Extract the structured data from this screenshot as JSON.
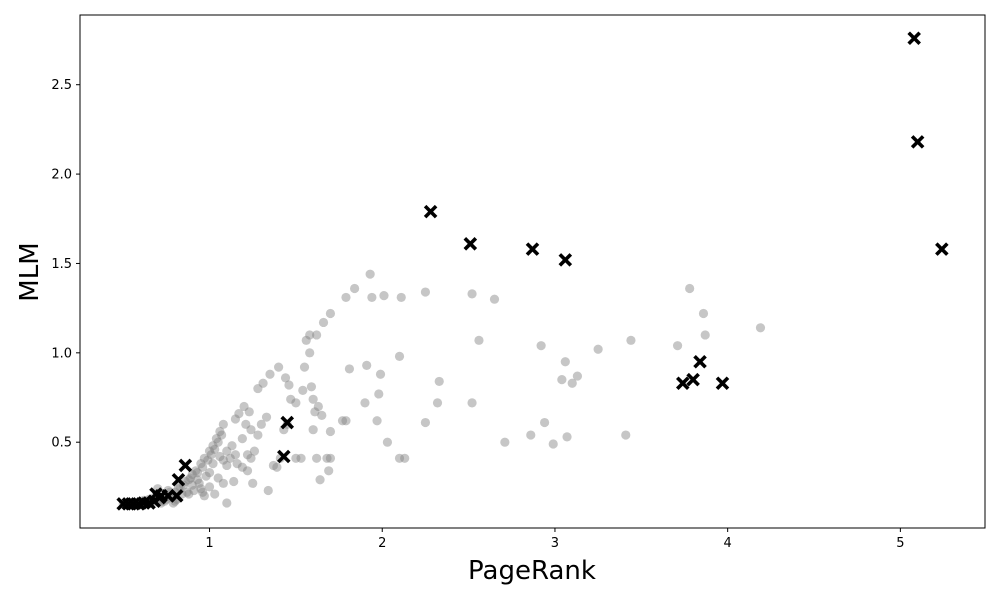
{
  "chart_data": {
    "type": "scatter",
    "xlabel": "PageRank",
    "ylabel": "MLM",
    "xlim": [
      0.25,
      5.49
    ],
    "ylim": [
      0.02,
      2.89
    ],
    "xticks": [
      1,
      2,
      3,
      4,
      5
    ],
    "yticks": [
      0.5,
      1.0,
      1.5,
      2.0,
      2.5
    ],
    "xtick_labels": [
      "1",
      "2",
      "3",
      "4",
      "5"
    ],
    "ytick_labels": [
      "0.5",
      "1.0",
      "1.5",
      "2.0",
      "2.5"
    ],
    "grid": false,
    "legend": "none",
    "series": [
      {
        "marker": "circle",
        "color": "#808080",
        "opacity": 0.45,
        "points": [
          [
            0.5,
            0.155
          ],
          [
            0.52,
            0.155
          ],
          [
            0.55,
            0.155
          ],
          [
            0.58,
            0.155
          ],
          [
            0.6,
            0.16
          ],
          [
            0.63,
            0.16
          ],
          [
            0.66,
            0.16
          ],
          [
            0.7,
            0.165
          ],
          [
            0.72,
            0.17
          ],
          [
            0.75,
            0.18
          ],
          [
            0.78,
            0.2
          ],
          [
            0.8,
            0.22
          ],
          [
            0.82,
            0.24
          ],
          [
            0.85,
            0.26
          ],
          [
            0.88,
            0.29
          ],
          [
            0.9,
            0.32
          ],
          [
            0.92,
            0.34
          ],
          [
            0.95,
            0.38
          ],
          [
            0.97,
            0.41
          ],
          [
            1.0,
            0.45
          ],
          [
            1.02,
            0.48
          ],
          [
            1.04,
            0.52
          ],
          [
            1.06,
            0.56
          ],
          [
            1.08,
            0.6
          ],
          [
            0.62,
            0.175
          ],
          [
            0.65,
            0.18
          ],
          [
            0.68,
            0.19
          ],
          [
            0.74,
            0.2
          ],
          [
            0.77,
            0.22
          ],
          [
            0.83,
            0.25
          ],
          [
            0.86,
            0.28
          ],
          [
            0.89,
            0.3
          ],
          [
            0.93,
            0.33
          ],
          [
            0.96,
            0.36
          ],
          [
            0.99,
            0.4
          ],
          [
            1.01,
            0.43
          ],
          [
            1.03,
            0.46
          ],
          [
            1.05,
            0.5
          ],
          [
            1.07,
            0.54
          ],
          [
            0.7,
            0.24
          ],
          [
            0.76,
            0.23
          ],
          [
            0.78,
            0.19
          ],
          [
            0.8,
            0.17
          ],
          [
            0.84,
            0.21
          ],
          [
            0.87,
            0.22
          ],
          [
            0.9,
            0.26
          ],
          [
            0.93,
            0.29
          ],
          [
            0.95,
            0.24
          ],
          [
            0.97,
            0.2
          ],
          [
            1.0,
            0.25
          ],
          [
            1.03,
            0.21
          ],
          [
            1.05,
            0.3
          ],
          [
            1.08,
            0.27
          ],
          [
            1.1,
            0.16
          ],
          [
            1.0,
            0.33
          ],
          [
            0.98,
            0.31
          ],
          [
            1.02,
            0.38
          ],
          [
            1.06,
            0.42
          ],
          [
            1.08,
            0.4
          ],
          [
            1.1,
            0.45
          ],
          [
            1.13,
            0.48
          ],
          [
            1.12,
            0.41
          ],
          [
            1.15,
            0.43
          ],
          [
            1.15,
            0.63
          ],
          [
            1.17,
            0.66
          ],
          [
            1.2,
            0.7
          ],
          [
            1.23,
            0.67
          ],
          [
            1.21,
            0.6
          ],
          [
            1.24,
            0.57
          ],
          [
            1.19,
            0.52
          ],
          [
            1.22,
            0.43
          ],
          [
            1.24,
            0.41
          ],
          [
            1.26,
            0.45
          ],
          [
            1.28,
            0.54
          ],
          [
            1.28,
            0.8
          ],
          [
            1.31,
            0.83
          ],
          [
            1.35,
            0.88
          ],
          [
            1.4,
            0.92
          ],
          [
            1.44,
            0.86
          ],
          [
            1.46,
            0.82
          ],
          [
            1.3,
            0.6
          ],
          [
            1.33,
            0.64
          ],
          [
            1.25,
            0.27
          ],
          [
            1.34,
            0.23
          ],
          [
            1.14,
            0.28
          ],
          [
            1.16,
            0.38
          ],
          [
            1.19,
            0.36
          ],
          [
            1.22,
            0.34
          ],
          [
            1.1,
            0.37
          ],
          [
            1.37,
            0.37
          ],
          [
            1.39,
            0.36
          ],
          [
            1.41,
            0.41
          ],
          [
            1.43,
            0.57
          ],
          [
            1.45,
            0.6
          ],
          [
            1.47,
            0.74
          ],
          [
            1.5,
            0.72
          ],
          [
            1.5,
            0.41
          ],
          [
            1.53,
            0.41
          ],
          [
            1.54,
            0.79
          ],
          [
            1.55,
            0.92
          ],
          [
            1.56,
            1.07
          ],
          [
            1.58,
            1.1
          ],
          [
            1.62,
            1.1
          ],
          [
            1.66,
            1.17
          ],
          [
            1.7,
            1.22
          ],
          [
            1.58,
            1.0
          ],
          [
            1.59,
            0.81
          ],
          [
            1.6,
            0.74
          ],
          [
            1.61,
            0.67
          ],
          [
            1.63,
            0.7
          ],
          [
            1.65,
            0.65
          ],
          [
            1.6,
            0.57
          ],
          [
            1.62,
            0.41
          ],
          [
            1.64,
            0.29
          ],
          [
            1.68,
            0.41
          ],
          [
            1.7,
            0.41
          ],
          [
            1.69,
            0.34
          ],
          [
            1.7,
            0.56
          ],
          [
            1.77,
            0.62
          ],
          [
            1.79,
            0.62
          ],
          [
            1.79,
            1.31
          ],
          [
            1.84,
            1.36
          ],
          [
            1.93,
            1.44
          ],
          [
            2.01,
            1.32
          ],
          [
            2.11,
            1.31
          ],
          [
            1.94,
            1.31
          ],
          [
            2.25,
            1.34
          ],
          [
            2.52,
            1.33
          ],
          [
            2.65,
            1.3
          ],
          [
            2.56,
            1.07
          ],
          [
            2.1,
            0.98
          ],
          [
            1.81,
            0.91
          ],
          [
            1.91,
            0.93
          ],
          [
            1.99,
            0.88
          ],
          [
            1.98,
            0.77
          ],
          [
            1.9,
            0.72
          ],
          [
            1.97,
            0.62
          ],
          [
            2.03,
            0.5
          ],
          [
            2.1,
            0.41
          ],
          [
            2.13,
            0.41
          ],
          [
            2.25,
            0.61
          ],
          [
            2.32,
            0.72
          ],
          [
            2.33,
            0.84
          ],
          [
            2.52,
            0.72
          ],
          [
            2.71,
            0.5
          ],
          [
            2.86,
            0.54
          ],
          [
            2.92,
            1.04
          ],
          [
            2.94,
            0.61
          ],
          [
            2.99,
            0.49
          ],
          [
            3.04,
            0.85
          ],
          [
            3.06,
            0.95
          ],
          [
            3.07,
            0.53
          ],
          [
            3.1,
            0.83
          ],
          [
            3.13,
            0.87
          ],
          [
            3.25,
            1.02
          ],
          [
            3.41,
            0.54
          ],
          [
            3.44,
            1.07
          ],
          [
            3.71,
            1.04
          ],
          [
            3.78,
            1.36
          ],
          [
            3.86,
            1.22
          ],
          [
            3.87,
            1.1
          ],
          [
            4.19,
            1.14
          ],
          [
            0.72,
            0.16
          ],
          [
            0.74,
            0.17
          ],
          [
            0.79,
            0.16
          ],
          [
            0.81,
            0.18
          ],
          [
            0.88,
            0.21
          ],
          [
            0.91,
            0.23
          ],
          [
            0.94,
            0.27
          ],
          [
            0.96,
            0.22
          ]
        ]
      },
      {
        "marker": "x",
        "color": "#000000",
        "opacity": 1,
        "points": [
          [
            0.5,
            0.155
          ],
          [
            0.53,
            0.155
          ],
          [
            0.56,
            0.155
          ],
          [
            0.59,
            0.155
          ],
          [
            0.62,
            0.16
          ],
          [
            0.65,
            0.16
          ],
          [
            0.68,
            0.17
          ],
          [
            0.71,
            0.19
          ],
          [
            0.69,
            0.21
          ],
          [
            0.72,
            0.2
          ],
          [
            0.76,
            0.2
          ],
          [
            0.81,
            0.2
          ],
          [
            0.82,
            0.29
          ],
          [
            0.86,
            0.37
          ],
          [
            1.43,
            0.42
          ],
          [
            1.45,
            0.61
          ],
          [
            2.28,
            1.79
          ],
          [
            2.51,
            1.61
          ],
          [
            2.87,
            1.58
          ],
          [
            3.06,
            1.52
          ],
          [
            3.74,
            0.83
          ],
          [
            3.8,
            0.85
          ],
          [
            3.84,
            0.95
          ],
          [
            3.97,
            0.83
          ],
          [
            5.08,
            2.76
          ],
          [
            5.1,
            2.18
          ],
          [
            5.24,
            1.58
          ]
        ]
      }
    ]
  }
}
